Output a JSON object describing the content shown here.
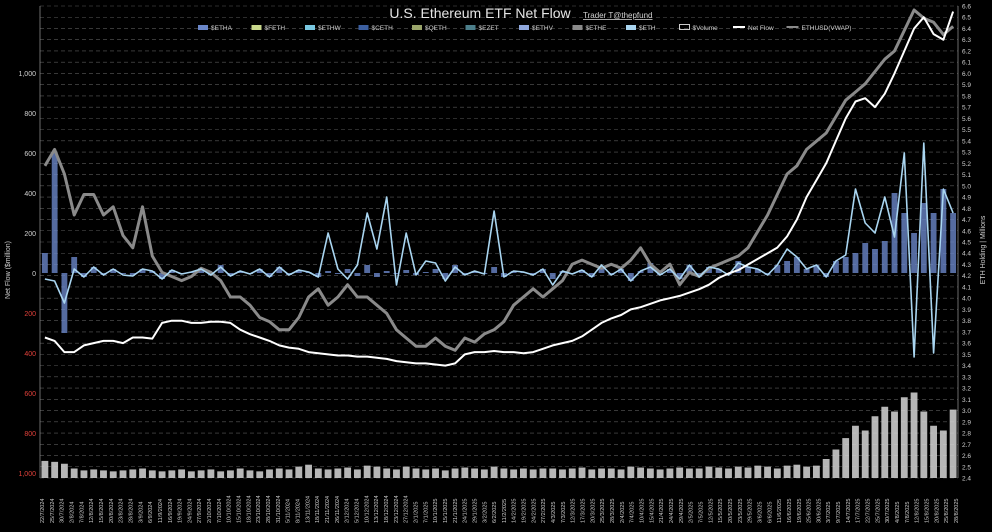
{
  "chart_data": {
    "type": "bar",
    "title": "U.S. Ethereum ETF Net Flow",
    "subtitle": "Trader T@thepfund",
    "ylabel_left": "Net Flow ($million)",
    "ylabel_right": "ETH Holding | Millions",
    "left_axis": {
      "range": [
        -1000,
        1000
      ],
      "ticks": [
        {
          "value": 1000,
          "label": "1,000"
        },
        {
          "value": 800,
          "label": "800"
        },
        {
          "value": 600,
          "label": "600"
        },
        {
          "value": 400,
          "label": "400"
        },
        {
          "value": 200,
          "label": "200"
        },
        {
          "value": 0,
          "label": "0"
        },
        {
          "value": -200,
          "label": "200"
        },
        {
          "value": -400,
          "label": "400"
        },
        {
          "value": -600,
          "label": "600"
        },
        {
          "value": -800,
          "label": "800"
        },
        {
          "value": -1000,
          "label": "1,000"
        }
      ],
      "negative_label_color": "#e0403a"
    },
    "right_axis": {
      "range": [
        2.4,
        6.6
      ],
      "ticks": [
        "6.6",
        "6.5",
        "6.4",
        "6.3",
        "6.2",
        "6.1",
        "6.0",
        "5.9",
        "5.8",
        "5.7",
        "5.6",
        "5.5",
        "5.4",
        "5.3",
        "5.2",
        "5.1",
        "5.0",
        "4.9",
        "4.8",
        "4.7",
        "4.6",
        "4.5",
        "4.4",
        "4.3",
        "4.2",
        "4.1",
        "4.0",
        "3.9",
        "3.8",
        "3.7",
        "3.6",
        "3.5",
        "3.4",
        "3.3",
        "3.2",
        "3.1",
        "3.0",
        "2.9",
        "2.8",
        "2.7",
        "2.6",
        "2.5",
        "2.4"
      ]
    },
    "legend": [
      {
        "name": "$ETHA",
        "color": "#6a86c8",
        "kind": "bar"
      },
      {
        "name": "$FETH",
        "color": "#c9d88c",
        "kind": "bar"
      },
      {
        "name": "$ETHW",
        "color": "#79c7e0",
        "kind": "bar"
      },
      {
        "name": "$CETH",
        "color": "#3c5fa0",
        "kind": "bar"
      },
      {
        "name": "$QETH",
        "color": "#9aa56a",
        "kind": "bar"
      },
      {
        "name": "$EZET",
        "color": "#4c7e8a",
        "kind": "bar"
      },
      {
        "name": "$ETHV",
        "color": "#8fa7dc",
        "kind": "bar"
      },
      {
        "name": "$ETHE",
        "color": "#8a8a8a",
        "kind": "bar"
      },
      {
        "name": "$ETH",
        "color": "#a9d5f0",
        "kind": "bar"
      },
      {
        "name": "$Volume",
        "color": "#ffffff",
        "kind": "box"
      },
      {
        "name": "Net Flow",
        "color": "#ffffff",
        "kind": "line"
      },
      {
        "name": "ETHUSD(VWAP)",
        "color": "#8a8a8a",
        "kind": "line"
      }
    ],
    "x_labels": [
      "22/7/2024",
      "25/7/2024",
      "30/7/2024",
      "2/8/2024",
      "7/8/2024",
      "12/8/2024",
      "15/8/2024",
      "20/8/2024",
      "23/8/2024",
      "28/8/2024",
      "3/9/2024",
      "6/9/2024",
      "11/9/2024",
      "16/9/2024",
      "19/9/2024",
      "24/9/2024",
      "27/9/2024",
      "2/10/2024",
      "7/10/2024",
      "10/10/2024",
      "15/10/2024",
      "18/10/2024",
      "23/10/2024",
      "28/10/2024",
      "31/10/2024",
      "5/11/2024",
      "8/11/2024",
      "13/11/2024",
      "18/11/2024",
      "21/11/2024",
      "26/11/2024",
      "2/12/2024",
      "5/12/2024",
      "10/12/2024",
      "13/12/2024",
      "18/12/2024",
      "23/12/2024",
      "27/12/2024",
      "2/1/2025",
      "7/1/2025",
      "10/1/2025",
      "15/1/2025",
      "21/1/2025",
      "24/1/2025",
      "29/1/2025",
      "3/2/2025",
      "6/2/2025",
      "11/2/2025",
      "14/2/2025",
      "19/2/2025",
      "24/2/2025",
      "27/2/2025",
      "4/3/2025",
      "7/3/2025",
      "12/3/2025",
      "17/3/2025",
      "20/3/2025",
      "25/3/2025",
      "28/3/2025",
      "2/4/2025",
      "7/4/2025",
      "10/4/2025",
      "15/4/2025",
      "21/4/2025",
      "24/4/2025",
      "29/4/2025",
      "2/5/2025",
      "7/5/2025",
      "12/5/2025",
      "15/5/2025",
      "20/5/2025",
      "23/5/2025",
      "29/5/2025",
      "3/6/2025",
      "6/6/2025",
      "11/6/2025",
      "16/6/2025",
      "19/6/2025",
      "25/6/2025",
      "30/6/2025",
      "3/7/2025",
      "9/7/2025",
      "14/7/2025",
      "17/7/2025",
      "22/7/2025",
      "25/7/2025",
      "30/7/2025",
      "4/8/2025",
      "7/8/2025",
      "12/8/2025",
      "15/8/2025",
      "20/8/2025",
      "25/8/2025",
      "28/8/2025"
    ],
    "net_flow": [
      100,
      600,
      -300,
      80,
      -20,
      30,
      -10,
      20,
      -5,
      -10,
      20,
      10,
      -30,
      15,
      -5,
      5,
      25,
      -10,
      40,
      -15,
      10,
      -5,
      20,
      -20,
      30,
      -10,
      15,
      5,
      -20,
      10,
      -5,
      20,
      -15,
      40,
      -20,
      10,
      -5,
      15,
      -10,
      5,
      20,
      -30,
      40,
      -10,
      10,
      -5,
      30,
      -20,
      10,
      5,
      -10,
      20,
      -30,
      10,
      -5,
      15,
      -20,
      30,
      -10,
      20,
      -40,
      10,
      50,
      -10,
      20,
      -30,
      40,
      -20,
      30,
      20,
      -10,
      60,
      30,
      20,
      -10,
      40,
      60,
      80,
      20,
      40,
      -20,
      60,
      80,
      100,
      150,
      120,
      160,
      400,
      300,
      200,
      350,
      300,
      420,
      300
    ],
    "net_flow_line": [
      -30,
      -40,
      -150,
      20,
      -20,
      30,
      -10,
      20,
      -10,
      -15,
      20,
      10,
      -30,
      15,
      -5,
      5,
      20,
      -10,
      30,
      -15,
      10,
      -5,
      20,
      -20,
      30,
      -10,
      15,
      5,
      -20,
      200,
      20,
      -30,
      40,
      300,
      120,
      380,
      -60,
      200,
      -10,
      60,
      50,
      -40,
      30,
      -10,
      10,
      -5,
      310,
      -20,
      10,
      5,
      -10,
      20,
      -60,
      10,
      -5,
      15,
      -20,
      40,
      -10,
      20,
      -40,
      10,
      30,
      -10,
      20,
      -30,
      40,
      -20,
      30,
      20,
      -10,
      50,
      30,
      20,
      -10,
      40,
      120,
      80,
      20,
      40,
      -20,
      60,
      90,
      420,
      250,
      200,
      380,
      180,
      600,
      -420,
      650,
      -400,
      420,
      300
    ],
    "eth_holding_m": [
      3.65,
      3.62,
      3.52,
      3.52,
      3.58,
      3.6,
      3.62,
      3.62,
      3.6,
      3.65,
      3.65,
      3.64,
      3.78,
      3.8,
      3.8,
      3.78,
      3.78,
      3.79,
      3.79,
      3.78,
      3.72,
      3.68,
      3.65,
      3.62,
      3.58,
      3.56,
      3.55,
      3.52,
      3.51,
      3.5,
      3.49,
      3.49,
      3.48,
      3.48,
      3.47,
      3.46,
      3.44,
      3.43,
      3.42,
      3.42,
      3.41,
      3.4,
      3.42,
      3.5,
      3.52,
      3.52,
      3.53,
      3.52,
      3.52,
      3.51,
      3.52,
      3.55,
      3.58,
      3.6,
      3.62,
      3.66,
      3.72,
      3.78,
      3.82,
      3.85,
      3.9,
      3.92,
      3.95,
      3.98,
      4.0,
      4.02,
      4.05,
      4.08,
      4.12,
      4.18,
      4.22,
      4.25,
      4.3,
      4.35,
      4.4,
      4.45,
      4.55,
      4.7,
      4.9,
      5.05,
      5.2,
      5.4,
      5.6,
      5.75,
      5.78,
      5.7,
      5.82,
      6.0,
      6.2,
      6.4,
      6.5,
      6.35,
      6.3,
      6.55
    ],
    "ethusd_vwap_relative": [
      0.62,
      0.66,
      0.6,
      0.5,
      0.55,
      0.55,
      0.5,
      0.52,
      0.45,
      0.42,
      0.52,
      0.4,
      0.36,
      0.35,
      0.34,
      0.35,
      0.37,
      0.36,
      0.34,
      0.3,
      0.3,
      0.28,
      0.25,
      0.24,
      0.22,
      0.22,
      0.25,
      0.3,
      0.32,
      0.28,
      0.3,
      0.33,
      0.3,
      0.3,
      0.28,
      0.26,
      0.22,
      0.2,
      0.18,
      0.18,
      0.2,
      0.18,
      0.17,
      0.2,
      0.19,
      0.21,
      0.22,
      0.24,
      0.28,
      0.3,
      0.32,
      0.3,
      0.32,
      0.34,
      0.38,
      0.39,
      0.38,
      0.37,
      0.38,
      0.37,
      0.39,
      0.42,
      0.38,
      0.36,
      0.38,
      0.33,
      0.36,
      0.35,
      0.37,
      0.38,
      0.39,
      0.4,
      0.42,
      0.46,
      0.5,
      0.55,
      0.6,
      0.62,
      0.66,
      0.68,
      0.7,
      0.74,
      0.78,
      0.8,
      0.82,
      0.85,
      0.88,
      0.9,
      0.95,
      1.0,
      0.98,
      0.97,
      0.94,
      0.96
    ],
    "volume_relative": [
      0.18,
      0.17,
      0.15,
      0.1,
      0.08,
      0.09,
      0.08,
      0.07,
      0.08,
      0.09,
      0.1,
      0.08,
      0.07,
      0.08,
      0.09,
      0.07,
      0.08,
      0.09,
      0.07,
      0.08,
      0.1,
      0.08,
      0.07,
      0.09,
      0.1,
      0.09,
      0.12,
      0.14,
      0.1,
      0.09,
      0.1,
      0.11,
      0.09,
      0.13,
      0.12,
      0.1,
      0.09,
      0.12,
      0.1,
      0.09,
      0.1,
      0.08,
      0.1,
      0.11,
      0.1,
      0.09,
      0.12,
      0.1,
      0.09,
      0.1,
      0.09,
      0.1,
      0.1,
      0.09,
      0.1,
      0.11,
      0.09,
      0.1,
      0.1,
      0.09,
      0.12,
      0.11,
      0.1,
      0.09,
      0.1,
      0.11,
      0.1,
      0.1,
      0.12,
      0.11,
      0.1,
      0.12,
      0.11,
      0.13,
      0.12,
      0.1,
      0.13,
      0.14,
      0.12,
      0.13,
      0.2,
      0.3,
      0.42,
      0.55,
      0.5,
      0.65,
      0.75,
      0.7,
      0.85,
      0.9,
      0.7,
      0.55,
      0.5,
      0.72
    ]
  }
}
